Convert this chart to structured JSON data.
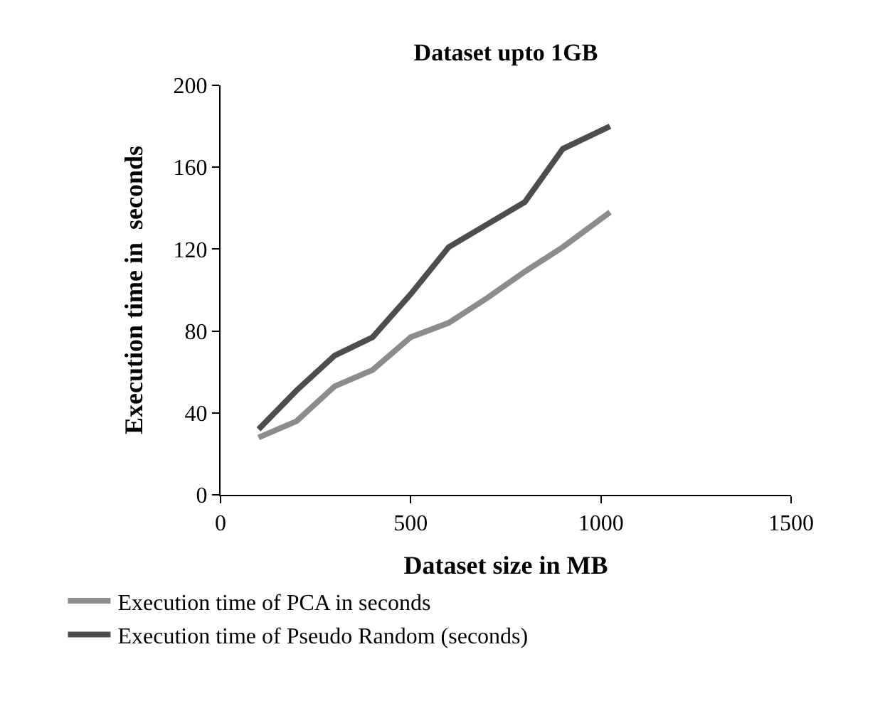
{
  "chart_data": {
    "type": "line",
    "title": "Dataset upto 1GB",
    "xlabel": "Dataset size in MB",
    "ylabel": "Execution time in  seconds",
    "x": [
      100,
      200,
      300,
      400,
      500,
      600,
      700,
      800,
      900,
      1024
    ],
    "series": [
      {
        "name": "Execution time of PCA in seconds",
        "color": "#8c8c8c",
        "values": [
          28,
          36,
          53,
          61,
          77,
          84,
          96,
          109,
          121,
          138
        ]
      },
      {
        "name": "Execution time of Pseudo Random (seconds)",
        "color": "#4d4d4d",
        "values": [
          32,
          51,
          68,
          77,
          98,
          121,
          132,
          143,
          169,
          180
        ]
      }
    ],
    "xlim": [
      0,
      1500
    ],
    "xticks": [
      0,
      500,
      1000,
      1500
    ],
    "ylim": [
      0,
      200
    ],
    "yticks": [
      0,
      40,
      80,
      120,
      160,
      200
    ],
    "grid": false,
    "legend": "bottom",
    "marker": "none",
    "line_style": "solid"
  }
}
